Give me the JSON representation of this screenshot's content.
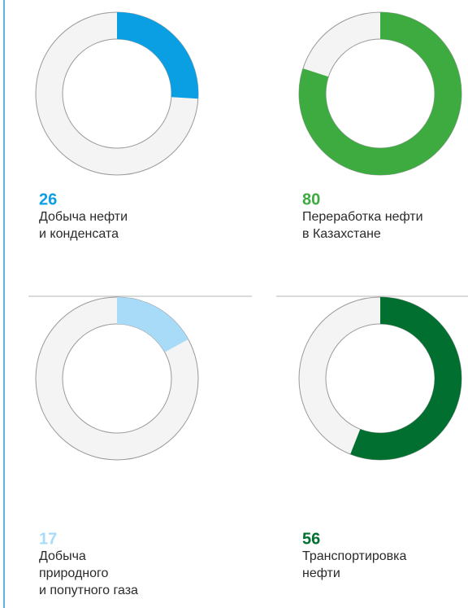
{
  "chart_data": [
    {
      "type": "donut",
      "value": 26,
      "ylim": [
        0,
        100
      ],
      "color": "#0a9fe3",
      "label": [
        "Добыча нефти",
        "и конденсата"
      ]
    },
    {
      "type": "donut",
      "value": 80,
      "ylim": [
        0,
        100
      ],
      "color": "#3dab40",
      "label": [
        "Переработка нефти",
        "в Казахстане"
      ]
    },
    {
      "type": "donut",
      "value": 17,
      "ylim": [
        0,
        100
      ],
      "color": "#a8dbf7",
      "label": [
        "Добыча",
        "природного",
        "и попутного газа"
      ]
    },
    {
      "type": "donut",
      "value": 56,
      "ylim": [
        0,
        100
      ],
      "color": "#006f30",
      "label": [
        "Транспортировка",
        "нефти"
      ]
    }
  ]
}
